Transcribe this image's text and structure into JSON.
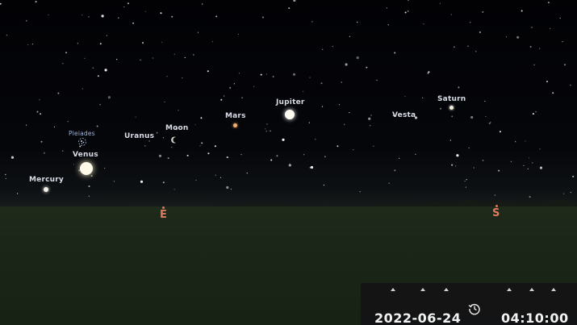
{
  "planets": {
    "mercury": "Mercury",
    "venus": "Venus",
    "pleiades": "Pleiades",
    "uranus": "Uranus",
    "moon": "Moon",
    "mars": "Mars",
    "jupiter": "Jupiter",
    "vesta": "Vesta",
    "saturn": "Saturn"
  },
  "cardinals": {
    "east": "E",
    "south": "S"
  },
  "time_bar": {
    "date": "2022-06-24",
    "time": "04:10:00",
    "history_icon": "history-icon",
    "increment_icon": "chevron-up-icon"
  },
  "colors": {
    "cardinal": "#e07a5f",
    "label": "#d8dde6",
    "sky": "#020205",
    "ground": "#1b2618"
  }
}
